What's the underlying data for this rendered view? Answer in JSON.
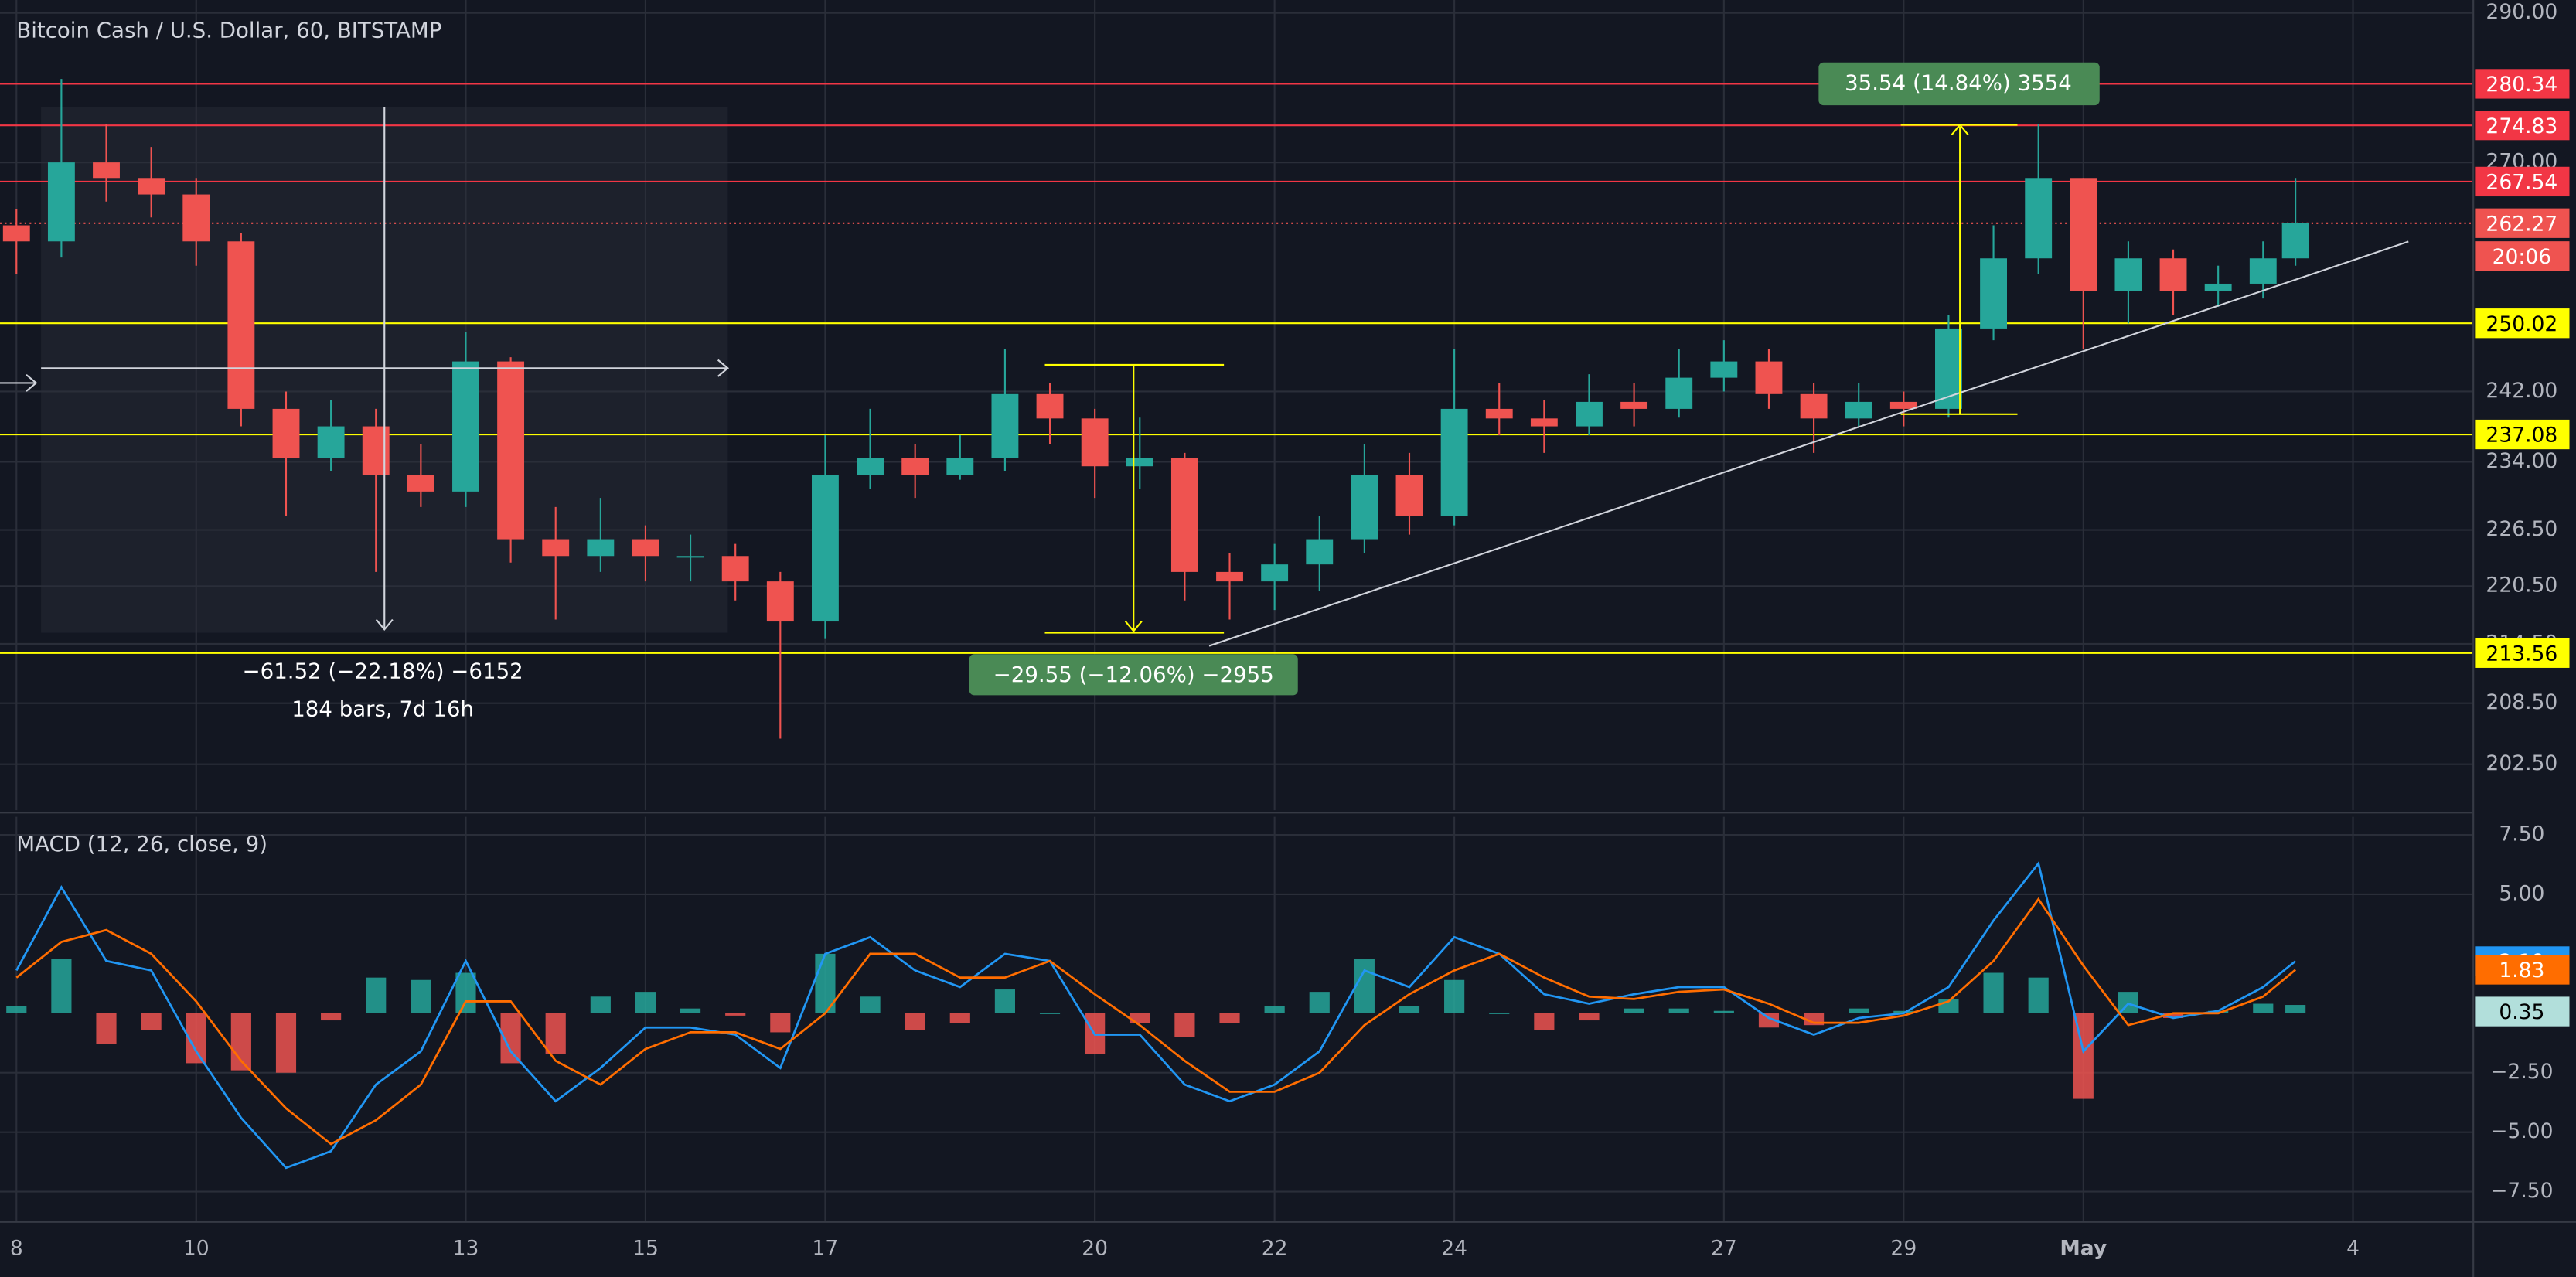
{
  "chart_data": [
    {
      "type": "candlestick",
      "title": "Bitcoin Cash / U.S. Dollar, 60, BITSTAMP",
      "x": [
        0,
        0.5,
        1,
        1.5,
        2,
        2.5,
        3,
        3.5,
        4,
        4.5,
        5,
        5.5,
        6,
        6.5,
        7,
        7.5,
        8,
        8.5,
        9,
        9.5,
        10,
        10.5,
        11,
        11.5,
        12,
        12.5,
        13,
        13.5,
        14,
        14.5,
        15,
        15.5,
        16,
        16.5,
        17,
        17.5,
        18,
        18.5,
        19,
        19.5,
        20,
        20.5,
        21,
        21.5,
        22,
        22.5,
        23,
        23.5,
        24,
        24.5,
        25,
        25.36
      ],
      "open": [
        262,
        260,
        270,
        268,
        265.9,
        260,
        240,
        234.4,
        238,
        232.5,
        230.7,
        245.5,
        225.5,
        223.7,
        225.5,
        223.7,
        223.7,
        221,
        216.8,
        232.5,
        234.4,
        232.5,
        234.4,
        241.7,
        238.9,
        233.5,
        234.4,
        222,
        221,
        222.8,
        225.5,
        232.5,
        228,
        240,
        238.9,
        238,
        240.8,
        240,
        243.6,
        245.5,
        241.7,
        238.9,
        240.8,
        240,
        249.4,
        257.9,
        268,
        253.9,
        257.9,
        253.9,
        254.8,
        257.9
      ],
      "high": [
        264,
        281,
        275,
        272,
        268,
        261,
        242,
        241,
        240,
        236,
        249,
        246,
        229,
        230,
        227,
        226,
        225,
        222,
        237,
        240,
        236,
        237,
        247,
        243,
        240,
        239,
        235,
        224,
        225,
        228,
        236,
        235,
        247,
        243,
        241,
        244,
        243,
        247,
        248,
        247,
        243,
        243,
        242,
        251,
        262,
        275,
        268,
        260,
        259,
        257,
        260,
        268
      ],
      "low": [
        256,
        258,
        265,
        263,
        257,
        238,
        228,
        233,
        222,
        229,
        229,
        223,
        217,
        222,
        221,
        221,
        219,
        205,
        215,
        231,
        230,
        232,
        233,
        236,
        230,
        231,
        219,
        217,
        218,
        220,
        224,
        226,
        227,
        237,
        235,
        237,
        238,
        239,
        242,
        240,
        235,
        238,
        238,
        239,
        248,
        256,
        247,
        250,
        251,
        252,
        253,
        257
      ],
      "close": [
        260,
        270,
        268,
        265.9,
        260,
        240,
        234.4,
        238,
        232.5,
        230.7,
        245.5,
        225.5,
        223.7,
        225.5,
        223.7,
        223.7,
        221,
        216.8,
        232.5,
        234.4,
        232.5,
        234.4,
        241.7,
        238.9,
        233.5,
        234.4,
        222,
        221,
        222.8,
        225.5,
        232.5,
        228,
        240,
        238.9,
        238,
        240.8,
        240,
        243.6,
        245.5,
        241.7,
        238.9,
        240.8,
        240,
        249.4,
        257.9,
        268,
        253.9,
        257.9,
        253.9,
        254.8,
        257.9,
        262.27
      ],
      "up_color": "#26a69a",
      "down_color": "#ef5350",
      "last_color": "#ef5350",
      "countdown": "20:06",
      "xlim": [
        -0.183,
        27.33
      ],
      "xticks": [
        {
          "value": 0,
          "label": "8"
        },
        {
          "value": 2,
          "label": "10"
        },
        {
          "value": 5,
          "label": "13"
        },
        {
          "value": 7,
          "label": "15"
        },
        {
          "value": 9,
          "label": "17"
        },
        {
          "value": 12,
          "label": "20"
        },
        {
          "value": 14,
          "label": "22"
        },
        {
          "value": 16,
          "label": "24"
        },
        {
          "value": 19,
          "label": "27"
        },
        {
          "value": 21,
          "label": "29"
        },
        {
          "value": 23,
          "label": "May"
        },
        {
          "value": 26,
          "label": "4"
        }
      ],
      "ylim": [
        198.1,
        291.8
      ],
      "log_scale": true,
      "grid": true,
      "yticks": [
        {
          "value": 290,
          "label": "290.00"
        },
        {
          "value": 270,
          "label": "270.00"
        },
        {
          "value": 242,
          "label": "242.00"
        },
        {
          "value": 234,
          "label": "234.00"
        },
        {
          "value": 226.5,
          "label": "226.50"
        },
        {
          "value": 220.5,
          "label": "220.50"
        },
        {
          "value": 214.5,
          "label": "214.50"
        },
        {
          "value": 208.5,
          "label": "208.50"
        },
        {
          "value": 202.5,
          "label": "202.50"
        }
      ],
      "hlines": [
        {
          "value": 280.34,
          "color": "#f23645",
          "text_color": "#ffffff"
        },
        {
          "value": 274.83,
          "color": "#f23645",
          "text_color": "#ffffff"
        },
        {
          "value": 267.54,
          "color": "#f23645",
          "text_color": "#ffffff"
        },
        {
          "value": 250.02,
          "color": "#ffff00",
          "text_color": "#000000"
        },
        {
          "value": 237.08,
          "color": "#ffff00",
          "text_color": "#000000"
        },
        {
          "value": 213.56,
          "color": "#ffff00",
          "text_color": "#000000"
        }
      ],
      "annotations": [
        "35.54 (14.84%) 3554",
        "−29.55 (−12.06%) −2955",
        "−61.52 (−22.18%) −6152",
        "184 bars, 7d 16h"
      ]
    },
    {
      "type": "macd",
      "title": "MACD (12, 26, close, 9)",
      "x": [
        0,
        0.5,
        1,
        1.5,
        2,
        2.5,
        3,
        3.5,
        4,
        4.5,
        5,
        5.5,
        6,
        6.5,
        7,
        7.5,
        8,
        8.5,
        9,
        9.5,
        10,
        10.5,
        11,
        11.5,
        12,
        12.5,
        13,
        13.5,
        14,
        14.5,
        15,
        15.5,
        16,
        16.5,
        17,
        17.5,
        18,
        18.5,
        19,
        19.5,
        20,
        20.5,
        21,
        21.5,
        22,
        22.5,
        23,
        23.5,
        24,
        24.5,
        25,
        25.36
      ],
      "macd": {
        "color": "#2196f3",
        "values": [
          1.8,
          5.3,
          2.2,
          1.8,
          -1.6,
          -4.4,
          -6.5,
          -5.8,
          -3.0,
          -1.6,
          2.2,
          -1.6,
          -3.7,
          -2.3,
          -0.6,
          -0.6,
          -0.9,
          -2.3,
          2.5,
          3.2,
          1.8,
          1.1,
          2.5,
          2.2,
          -0.9,
          -0.9,
          -3.0,
          -3.7,
          -3.0,
          -1.6,
          1.8,
          1.1,
          3.2,
          2.5,
          0.8,
          0.4,
          0.8,
          1.1,
          1.1,
          -0.2,
          -0.9,
          -0.2,
          0,
          1.1,
          3.9,
          6.3,
          -1.6,
          0.4,
          -0.2,
          0.1,
          1.1,
          2.19
        ]
      },
      "signal": {
        "color": "#ff6d00",
        "values": [
          1.5,
          3.0,
          3.5,
          2.5,
          0.5,
          -2.0,
          -4.0,
          -5.5,
          -4.5,
          -3.0,
          0.5,
          0.5,
          -2.0,
          -3.0,
          -1.5,
          -0.8,
          -0.8,
          -1.5,
          0,
          2.5,
          2.5,
          1.5,
          1.5,
          2.2,
          0.8,
          -0.5,
          -2.0,
          -3.3,
          -3.3,
          -2.5,
          -0.5,
          0.8,
          1.8,
          2.5,
          1.5,
          0.7,
          0.6,
          0.9,
          1.0,
          0.4,
          -0.4,
          -0.4,
          -0.1,
          0.5,
          2.2,
          4.8,
          2.0,
          -0.5,
          0,
          0,
          0.7,
          1.83
        ]
      },
      "histogram": {
        "up_color": "#26a69a",
        "down_color": "#ef5350",
        "label_color": "#b2dfdb",
        "values": [
          0.3,
          2.3,
          -1.3,
          -0.7,
          -2.1,
          -2.4,
          -2.5,
          -0.3,
          1.5,
          1.4,
          1.7,
          -2.1,
          -1.7,
          0.7,
          0.9,
          0.2,
          -0.1,
          -0.8,
          2.5,
          0.7,
          -0.7,
          -0.4,
          1.0,
          0,
          -1.7,
          -0.4,
          -1.0,
          -0.4,
          0.3,
          0.9,
          2.3,
          0.3,
          1.4,
          0,
          -0.7,
          -0.3,
          0.2,
          0.2,
          0.1,
          -0.6,
          -0.5,
          0.2,
          0.1,
          0.6,
          1.7,
          1.5,
          -3.6,
          0.9,
          -0.2,
          0.1,
          0.4,
          0.35
        ]
      },
      "ylim": [
        -8.74,
        8.26
      ],
      "yticks": [
        {
          "value": 7.5,
          "label": "7.50"
        },
        {
          "value": 5,
          "label": "5.00"
        },
        {
          "value": -2.5,
          "label": "−2.50"
        },
        {
          "value": -5,
          "label": "−5.00"
        },
        {
          "value": -7.5,
          "label": "−7.50"
        }
      ]
    }
  ]
}
